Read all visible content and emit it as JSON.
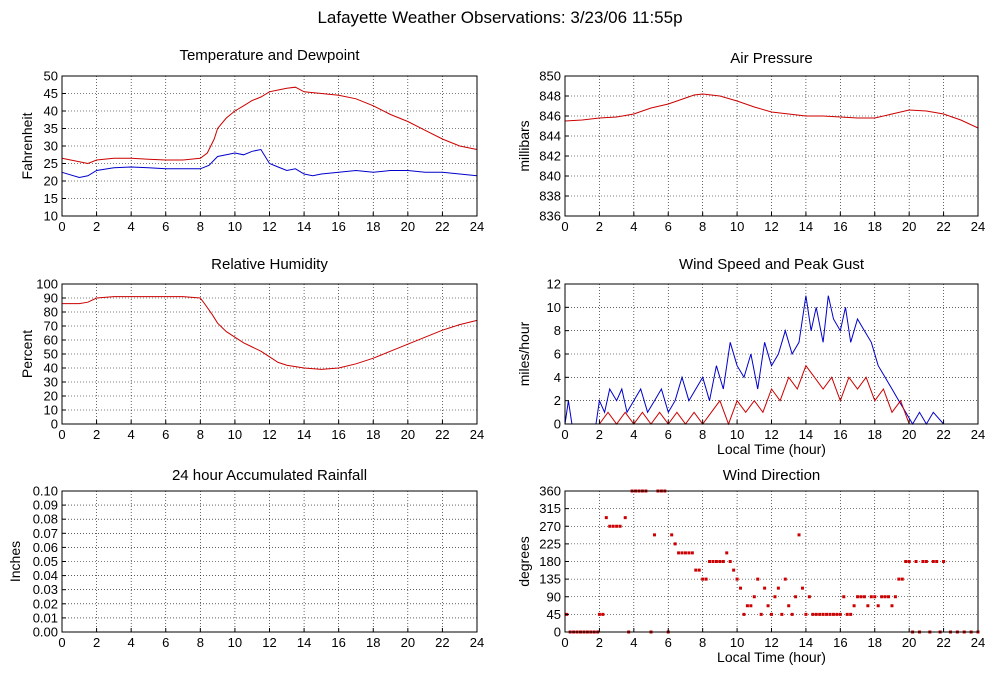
{
  "title": "Lafayette Weather Observations: 3/23/06 11:55p",
  "colors": {
    "red": "#cc0000",
    "blue": "#0000cc",
    "grid": "#000000"
  },
  "chart_data": [
    {
      "id": "temp",
      "type": "line",
      "title": "Temperature and Dewpoint",
      "xlabel": "",
      "ylabel": "Fahrenheit",
      "xlim": [
        0,
        24
      ],
      "xticks": [
        0,
        2,
        4,
        6,
        8,
        10,
        12,
        14,
        16,
        18,
        20,
        22,
        24
      ],
      "ylim": [
        10,
        50
      ],
      "yticks": [
        10,
        15,
        20,
        25,
        30,
        35,
        40,
        45,
        50
      ],
      "grid": true,
      "series": [
        {
          "color": "red",
          "x": [
            0,
            1,
            1.5,
            2,
            3,
            4,
            5,
            6,
            7,
            8,
            8.4,
            8.8,
            9,
            9.5,
            10,
            10.5,
            11,
            11.5,
            12,
            12.5,
            13,
            13.5,
            14,
            15,
            16,
            17,
            18,
            19,
            20,
            21,
            22,
            23,
            24
          ],
          "y": [
            26.5,
            25.5,
            25,
            26,
            26.5,
            26.5,
            26.2,
            26,
            26,
            26.5,
            28,
            32,
            35,
            38,
            40,
            41.5,
            43,
            44,
            45.5,
            46,
            46.5,
            46.8,
            45.5,
            45,
            44.5,
            43.5,
            41.5,
            39,
            37,
            34.5,
            32,
            30,
            29
          ]
        },
        {
          "color": "blue",
          "x": [
            0,
            1,
            1.5,
            2,
            3,
            4,
            5,
            6,
            7,
            8,
            8.5,
            9,
            9.5,
            10,
            10.5,
            11,
            11.5,
            12,
            12.5,
            13,
            13.5,
            14,
            14.5,
            15,
            16,
            17,
            18,
            19,
            20,
            21,
            22,
            23,
            24
          ],
          "y": [
            22.5,
            21,
            21.5,
            23,
            23.8,
            24,
            23.8,
            23.5,
            23.5,
            23.5,
            24.5,
            27,
            27.5,
            28,
            27.5,
            28.5,
            29,
            25,
            24,
            23,
            23.5,
            22,
            21.5,
            22,
            22.5,
            23,
            22.5,
            23,
            23,
            22.5,
            22.5,
            22,
            21.5
          ]
        }
      ]
    },
    {
      "id": "pressure",
      "type": "line",
      "title": "Air Pressure",
      "xlabel": "",
      "ylabel": "millibars",
      "xlim": [
        0,
        24
      ],
      "xticks": [
        0,
        2,
        4,
        6,
        8,
        10,
        12,
        14,
        16,
        18,
        20,
        22,
        24
      ],
      "ylim": [
        836,
        850
      ],
      "yticks": [
        836,
        838,
        840,
        842,
        844,
        846,
        848,
        850
      ],
      "grid": true,
      "series": [
        {
          "color": "red",
          "x": [
            0,
            1,
            2,
            3,
            4,
            5,
            6,
            7,
            7.5,
            8,
            9,
            10,
            11,
            12,
            13,
            14,
            15,
            16,
            17,
            18,
            19,
            20,
            21,
            22,
            23,
            24
          ],
          "y": [
            845.5,
            845.6,
            845.8,
            845.9,
            846.2,
            846.8,
            847.2,
            847.8,
            848.1,
            848.2,
            848.0,
            847.5,
            846.9,
            846.4,
            846.2,
            846.0,
            846.0,
            845.9,
            845.8,
            845.8,
            846.2,
            846.6,
            846.5,
            846.2,
            845.6,
            844.8
          ]
        }
      ]
    },
    {
      "id": "humidity",
      "type": "line",
      "title": "Relative Humidity",
      "xlabel": "",
      "ylabel": "Percent",
      "xlim": [
        0,
        24
      ],
      "xticks": [
        0,
        2,
        4,
        6,
        8,
        10,
        12,
        14,
        16,
        18,
        20,
        22,
        24
      ],
      "ylim": [
        0,
        100
      ],
      "yticks": [
        0,
        10,
        20,
        30,
        40,
        50,
        60,
        70,
        80,
        90,
        100
      ],
      "grid": true,
      "series": [
        {
          "color": "red",
          "x": [
            0,
            1,
            1.5,
            2,
            3,
            4,
            5,
            6,
            7,
            8,
            8.3,
            8.7,
            9,
            9.5,
            10,
            10.5,
            11,
            11.5,
            12,
            12.5,
            13,
            14,
            15,
            16,
            17,
            18,
            19,
            20,
            21,
            22,
            23,
            24
          ],
          "y": [
            86,
            86,
            87,
            90,
            91,
            91,
            91,
            91,
            91,
            90,
            85,
            78,
            72,
            66,
            62,
            58,
            55,
            52,
            48,
            44,
            42,
            40,
            39,
            40,
            43,
            47,
            52,
            57,
            62,
            67,
            71,
            74
          ]
        }
      ]
    },
    {
      "id": "wind",
      "type": "line",
      "title": "Wind Speed and Peak Gust",
      "xlabel": "Local Time (hour)",
      "ylabel": "miles/hour",
      "xlim": [
        0,
        24
      ],
      "xticks": [
        0,
        2,
        4,
        6,
        8,
        10,
        12,
        14,
        16,
        18,
        20,
        22,
        24
      ],
      "ylim": [
        0,
        12
      ],
      "yticks": [
        0,
        2,
        4,
        6,
        8,
        10,
        12
      ],
      "grid": true,
      "series": [
        {
          "color": "blue",
          "x": [
            0,
            0.2,
            0.4,
            1.5,
            1.8,
            2.0,
            2.3,
            2.6,
            3.0,
            3.3,
            3.6,
            4.0,
            4.4,
            4.8,
            5.2,
            5.6,
            6.0,
            6.4,
            6.8,
            7.2,
            7.6,
            8.0,
            8.4,
            8.8,
            9.2,
            9.6,
            10.0,
            10.4,
            10.8,
            11.2,
            11.6,
            12.0,
            12.4,
            12.8,
            13.2,
            13.6,
            14.0,
            14.3,
            14.6,
            15.0,
            15.3,
            15.6,
            16.0,
            16.3,
            16.6,
            17.0,
            17.4,
            17.8,
            18.2,
            18.6,
            19.0,
            19.4,
            19.8,
            20.2,
            20.6,
            21.0,
            21.4,
            22.0,
            24.0
          ],
          "y": [
            0,
            2,
            0,
            0,
            0,
            2,
            1,
            3,
            2,
            3,
            1,
            2,
            3,
            1,
            2,
            3,
            1,
            2,
            4,
            2,
            3,
            4,
            2,
            5,
            3,
            7,
            5,
            4,
            6,
            3,
            7,
            5,
            6,
            8,
            6,
            7,
            11,
            8,
            10,
            7,
            11,
            9,
            8,
            10,
            7,
            9,
            8,
            7,
            5,
            4,
            3,
            2,
            1,
            0,
            1,
            0,
            1,
            0,
            0
          ]
        },
        {
          "color": "red",
          "x": [
            0,
            2.0,
            2.5,
            3.0,
            3.5,
            4.0,
            4.5,
            5.0,
            5.5,
            6.0,
            6.5,
            7.0,
            7.5,
            8.0,
            8.5,
            9.0,
            9.5,
            10.0,
            10.5,
            11.0,
            11.5,
            12.0,
            12.5,
            13.0,
            13.5,
            14.0,
            14.5,
            15.0,
            15.5,
            16.0,
            16.5,
            17.0,
            17.5,
            18.0,
            18.5,
            19.0,
            19.5,
            20.0,
            24.0
          ],
          "y": [
            0,
            0,
            1,
            0,
            1,
            0,
            1,
            0,
            1,
            0,
            1,
            0,
            1,
            0,
            1,
            2,
            0,
            2,
            1,
            2,
            1,
            3,
            2,
            4,
            3,
            5,
            4,
            3,
            4,
            2,
            4,
            3,
            4,
            2,
            3,
            1,
            2,
            0,
            0
          ]
        }
      ]
    },
    {
      "id": "rain",
      "type": "line",
      "title": "24 hour Accumulated Rainfall",
      "xlabel": "",
      "ylabel": "Inches",
      "xlim": [
        0,
        24
      ],
      "xticks": [
        0,
        2,
        4,
        6,
        8,
        10,
        12,
        14,
        16,
        18,
        20,
        22,
        24
      ],
      "ylim": [
        0,
        0.1
      ],
      "yticks": [
        0.0,
        0.01,
        0.02,
        0.03,
        0.04,
        0.05,
        0.06,
        0.07,
        0.08,
        0.09,
        0.1
      ],
      "ytick_labels": [
        "0.00",
        "0.01",
        "0.02",
        "0.03",
        "0.04",
        "0.05",
        "0.06",
        "0.07",
        "0.08",
        "0.09",
        "0.10"
      ],
      "grid": true,
      "series": [
        {
          "color": "red",
          "x": [
            0,
            0,
            0.05,
            24
          ],
          "y": [
            0.025,
            0.0,
            0.0,
            0.0
          ]
        }
      ]
    },
    {
      "id": "direction",
      "type": "scatter",
      "title": "Wind Direction",
      "xlabel": "Local Time (hour)",
      "ylabel": "degrees",
      "xlim": [
        0,
        24
      ],
      "xticks": [
        0,
        2,
        4,
        6,
        8,
        10,
        12,
        14,
        16,
        18,
        20,
        22,
        24
      ],
      "ylim": [
        0,
        360
      ],
      "yticks": [
        0,
        45,
        90,
        135,
        180,
        225,
        270,
        315,
        360
      ],
      "grid": true,
      "series": [
        {
          "color": "red",
          "x": [
            0.1,
            0.3,
            0.5,
            0.7,
            0.9,
            1.1,
            1.3,
            1.5,
            1.7,
            1.9,
            2.0,
            2.2,
            2.4,
            2.6,
            2.8,
            3.0,
            3.2,
            3.5,
            3.7,
            3.9,
            4.1,
            4.3,
            4.5,
            4.7,
            5.0,
            5.2,
            5.4,
            5.6,
            5.8,
            6.0,
            6.2,
            6.4,
            6.6,
            6.8,
            7.0,
            7.2,
            7.4,
            7.6,
            7.8,
            8.0,
            8.2,
            8.4,
            8.6,
            8.8,
            9.0,
            9.2,
            9.4,
            9.6,
            9.8,
            10.0,
            10.2,
            10.4,
            10.6,
            10.8,
            11.0,
            11.2,
            11.4,
            11.6,
            11.8,
            12.0,
            12.2,
            12.4,
            12.6,
            12.8,
            13.0,
            13.2,
            13.4,
            13.6,
            13.8,
            14.0,
            14.2,
            14.4,
            14.6,
            14.8,
            15.0,
            15.2,
            15.4,
            15.6,
            15.8,
            16.0,
            16.2,
            16.4,
            16.6,
            16.8,
            17.0,
            17.2,
            17.4,
            17.6,
            17.8,
            18.0,
            18.2,
            18.4,
            18.6,
            18.8,
            19.0,
            19.2,
            19.4,
            19.6,
            19.8,
            20.0,
            20.2,
            20.4,
            20.6,
            20.8,
            21.0,
            21.2,
            21.4,
            21.6,
            21.8,
            22.0,
            22.4,
            22.8,
            23.2,
            23.6,
            24.0
          ],
          "y": [
            45,
            0,
            0,
            0,
            0,
            0,
            0,
            0,
            0,
            0,
            45,
            45,
            292,
            270,
            270,
            270,
            270,
            292,
            0,
            360,
            360,
            360,
            360,
            360,
            0,
            248,
            360,
            360,
            360,
            0,
            248,
            225,
            202,
            202,
            202,
            202,
            202,
            158,
            158,
            135,
            135,
            180,
            180,
            180,
            180,
            180,
            202,
            180,
            158,
            135,
            112,
            45,
            67,
            67,
            90,
            135,
            45,
            112,
            67,
            45,
            90,
            112,
            45,
            135,
            67,
            45,
            90,
            248,
            112,
            45,
            90,
            45,
            45,
            45,
            45,
            45,
            45,
            45,
            45,
            45,
            90,
            45,
            45,
            67,
            90,
            90,
            90,
            67,
            90,
            90,
            67,
            90,
            90,
            90,
            67,
            90,
            135,
            135,
            180,
            180,
            0,
            180,
            0,
            180,
            180,
            0,
            180,
            180,
            0,
            180,
            0,
            0,
            0,
            0,
            0
          ]
        }
      ]
    }
  ]
}
